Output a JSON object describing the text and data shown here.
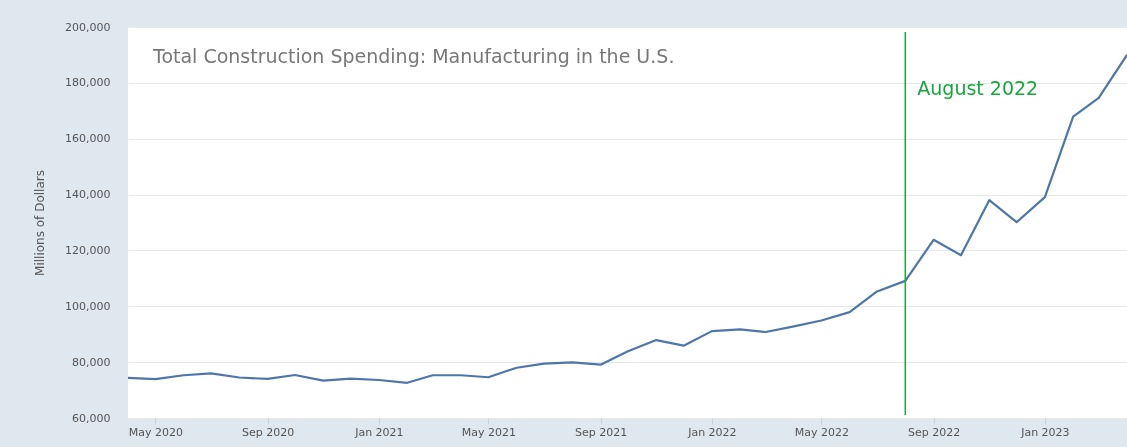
{
  "chart_data": {
    "type": "line",
    "title": "Total Construction Spending: Manufacturing in the U.S.",
    "ylabel": "Millions of Dollars",
    "x": [
      "2020-04",
      "2020-05",
      "2020-06",
      "2020-07",
      "2020-08",
      "2020-09",
      "2020-10",
      "2020-11",
      "2020-12",
      "2021-01",
      "2021-02",
      "2021-03",
      "2021-04",
      "2021-05",
      "2021-06",
      "2021-07",
      "2021-08",
      "2021-09",
      "2021-10",
      "2021-11",
      "2021-12",
      "2022-01",
      "2022-02",
      "2022-03",
      "2022-04",
      "2022-05",
      "2022-06",
      "2022-07",
      "2022-08",
      "2022-09",
      "2022-10",
      "2022-11",
      "2022-12",
      "2023-01",
      "2023-02",
      "2023-03",
      "2023-04"
    ],
    "series": [
      {
        "color": "#4e76ab",
        "values": [
          74400,
          73900,
          75300,
          76000,
          74500,
          74000,
          75400,
          73400,
          74100,
          73600,
          72600,
          75300,
          75300,
          74600,
          78000,
          79500,
          79900,
          79100,
          83900,
          87900,
          85900,
          91100,
          91700,
          90800,
          92800,
          94900,
          97900,
          105300,
          109100,
          123800,
          118300,
          138000,
          130100,
          139100,
          167900,
          174600,
          190000
        ]
      }
    ],
    "xlim": [
      "2020-04",
      "2023-04"
    ],
    "ylim": [
      60000,
      200000
    ],
    "yticks": [
      {
        "value": 60000,
        "label": "60,000"
      },
      {
        "value": 80000,
        "label": "80,000"
      },
      {
        "value": 100000,
        "label": "100,000"
      },
      {
        "value": 120000,
        "label": "120,000"
      },
      {
        "value": 140000,
        "label": "140,000"
      },
      {
        "value": 160000,
        "label": "160,000"
      },
      {
        "value": 180000,
        "label": "180,000"
      },
      {
        "value": 200000,
        "label": "200,000"
      }
    ],
    "xticks": [
      {
        "value": "2020-05",
        "label": "May 2020"
      },
      {
        "value": "2020-09",
        "label": "Sep 2020"
      },
      {
        "value": "2021-01",
        "label": "Jan 2021"
      },
      {
        "value": "2021-05",
        "label": "May 2021"
      },
      {
        "value": "2021-09",
        "label": "Sep 2021"
      },
      {
        "value": "2022-01",
        "label": "Jan 2022"
      },
      {
        "value": "2022-05",
        "label": "May 2022"
      },
      {
        "value": "2022-09",
        "label": "Sep 2022"
      },
      {
        "value": "2023-01",
        "label": "Jan 2023"
      }
    ],
    "ref_lines": [
      {
        "axis": "x",
        "value": "2022-08",
        "label": "August 2022",
        "color": "#12a83c"
      }
    ],
    "grid": "y",
    "marker": "none",
    "line_style": "solid"
  }
}
